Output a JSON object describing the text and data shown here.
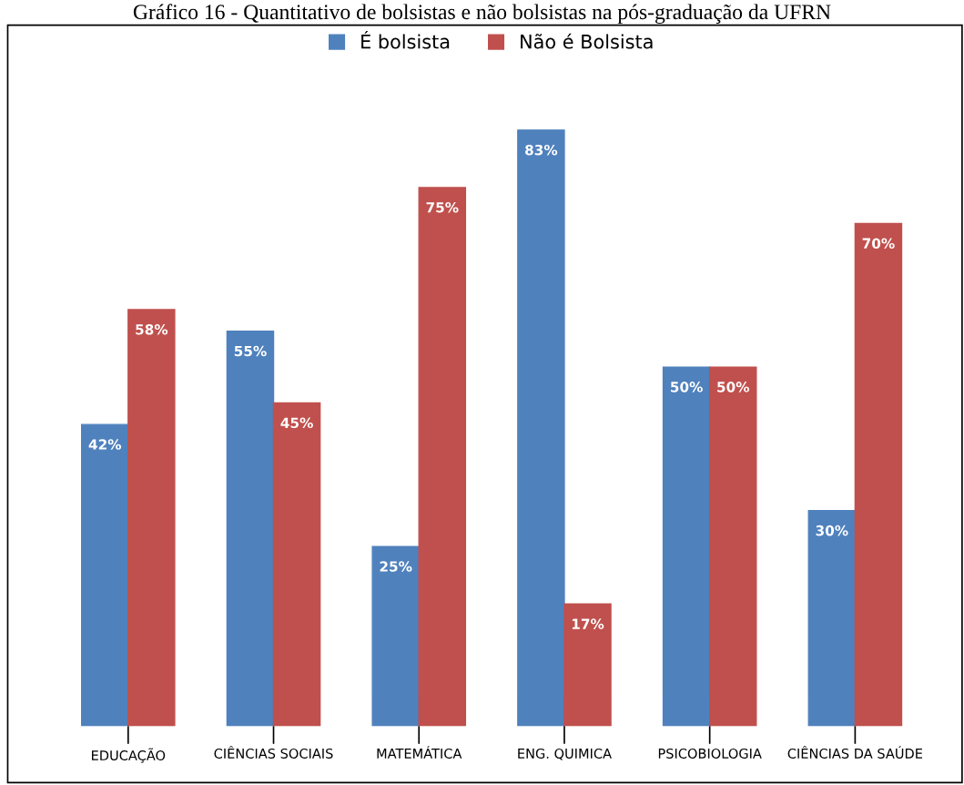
{
  "chart_data": {
    "type": "bar",
    "title": "Gráfico 16 - Quantitativo de bolsistas e não bolsistas na pós-graduação da UFRN",
    "categories": [
      "EDUCAÇÃO",
      "CIÊNCIAS SOCIAIS",
      "MATEMÁTICA",
      "ENG. QUIMICA",
      "PSICOBIOLOGIA",
      "CIÊNCIAS DA SAÚDE"
    ],
    "series": [
      {
        "name": "É bolsista",
        "color": "#4f81bd",
        "values": [
          42,
          55,
          25,
          83,
          50,
          30
        ],
        "value_labels": [
          "42%",
          "55%",
          "25%",
          "83%",
          "50%",
          "30%"
        ]
      },
      {
        "name": "Não é Bolsista",
        "color": "#c0504d",
        "values": [
          58,
          45,
          75,
          17,
          50,
          70
        ],
        "value_labels": [
          "58%",
          "45%",
          "75%",
          "17%",
          "50%",
          "70%"
        ]
      }
    ],
    "legend": "top",
    "grid": false
  }
}
